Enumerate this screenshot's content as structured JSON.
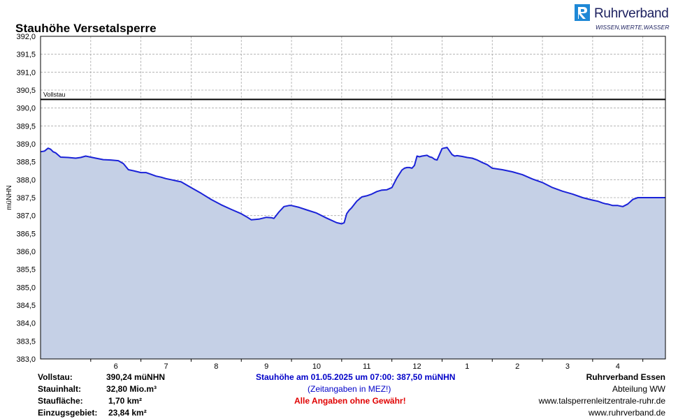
{
  "header": {
    "title": "Stauhöhe Versetalsperre",
    "logo_name": "Ruhrverband",
    "logo_tagline": "WISSEN,WERTE,WASSER"
  },
  "colors": {
    "fill": "#c5d0e6",
    "line": "#1a22d8",
    "vollstau_line": "#000000",
    "grid": "#a8a8a8",
    "accent_blue": "#0000c8",
    "warning_red": "#e00000",
    "logo_blue": "#1b1f5e"
  },
  "chart_data": {
    "type": "area",
    "title": "Stauhöhe Versetalsperre",
    "ylabel": "müNHN",
    "ylim": [
      383.0,
      392.0
    ],
    "y_ticks": [
      "383,0",
      "383,5",
      "384,0",
      "384,5",
      "385,0",
      "385,5",
      "386,0",
      "386,5",
      "387,0",
      "387,5",
      "388,0",
      "388,5",
      "389,0",
      "389,5",
      "390,0",
      "390,5",
      "391,0",
      "391,5",
      "392,0"
    ],
    "x_ticks": [
      "6",
      "7",
      "8",
      "9",
      "10",
      "11",
      "12",
      "1",
      "2",
      "3",
      "4"
    ],
    "x_unit": "months (May 2024 – May 2025)",
    "xlim": [
      5.0,
      17.45
    ],
    "grid": true,
    "reference_line": {
      "label": "Vollstau",
      "value": 390.24
    },
    "series": [
      {
        "x": [
          5.0,
          5.08,
          5.15,
          5.2,
          5.25,
          5.3,
          5.4,
          5.55,
          5.7,
          5.8,
          5.9,
          6.0,
          6.1,
          6.25,
          6.4,
          6.55,
          6.65,
          6.75,
          6.85,
          7.0,
          7.1,
          7.2,
          7.3,
          7.4,
          7.5,
          7.6,
          7.7,
          7.8,
          8.0,
          8.2,
          8.4,
          8.6,
          8.8,
          9.0,
          9.1,
          9.2,
          9.35,
          9.5,
          9.6,
          9.65,
          9.75,
          9.85,
          9.95,
          10.0,
          10.15,
          10.3,
          10.5,
          10.7,
          10.9,
          11.0,
          11.05,
          11.1,
          11.15,
          11.2,
          11.3,
          11.4,
          11.5,
          11.6,
          11.7,
          11.8,
          11.9,
          12.0,
          12.1,
          12.2,
          12.25,
          12.3,
          12.35,
          12.4,
          12.45,
          12.5,
          12.55,
          12.6,
          12.7,
          12.75,
          12.8,
          12.85,
          12.9,
          13.0,
          13.1,
          13.2,
          13.25,
          13.3,
          13.4,
          13.5,
          13.6,
          13.7,
          13.8,
          13.9,
          14.0,
          14.2,
          14.4,
          14.6,
          14.8,
          15.0,
          15.2,
          15.4,
          15.6,
          15.8,
          16.0,
          16.1,
          16.2,
          16.25,
          16.3,
          16.4,
          16.5,
          16.6,
          16.7,
          16.8,
          16.9,
          17.0,
          17.05,
          17.1,
          17.2,
          17.3,
          17.45
        ],
        "values": [
          388.78,
          388.8,
          388.88,
          388.85,
          388.78,
          388.75,
          388.63,
          388.62,
          388.6,
          388.62,
          388.66,
          388.63,
          388.6,
          388.56,
          388.55,
          388.53,
          388.45,
          388.28,
          388.25,
          388.2,
          388.2,
          388.15,
          388.1,
          388.07,
          388.03,
          388.0,
          387.97,
          387.94,
          387.78,
          387.62,
          387.45,
          387.3,
          387.17,
          387.05,
          386.97,
          386.88,
          386.9,
          386.95,
          386.94,
          386.92,
          387.1,
          387.25,
          387.28,
          387.28,
          387.23,
          387.16,
          387.07,
          386.93,
          386.8,
          386.77,
          386.8,
          387.05,
          387.15,
          387.22,
          387.4,
          387.52,
          387.55,
          387.6,
          387.67,
          387.71,
          387.72,
          387.78,
          388.05,
          388.27,
          388.32,
          388.34,
          388.34,
          388.32,
          388.4,
          388.66,
          388.64,
          388.66,
          388.68,
          388.64,
          388.62,
          388.57,
          388.55,
          388.87,
          388.9,
          388.7,
          388.66,
          388.67,
          388.65,
          388.62,
          388.6,
          388.55,
          388.48,
          388.42,
          388.32,
          388.28,
          388.22,
          388.14,
          388.02,
          387.92,
          387.78,
          387.68,
          387.6,
          387.5,
          387.43,
          387.4,
          387.35,
          387.33,
          387.32,
          387.28,
          387.28,
          387.25,
          387.32,
          387.45,
          387.5,
          387.5,
          387.5,
          387.5,
          387.5,
          387.5,
          387.5
        ]
      }
    ]
  },
  "footer": {
    "left": [
      {
        "label": "Vollstau:",
        "value": "390,24 müNHN"
      },
      {
        "label": "Stauinhalt:",
        "value": "32,80 Mio.m³"
      },
      {
        "label": "Staufläche:",
        "value": "1,70 km²"
      },
      {
        "label": "Einzugsgebiet:",
        "value": "23,84 km²"
      }
    ],
    "center": {
      "current": "Stauhöhe am 01.05.2025 um 07:00: 387,50  müNHN",
      "note": "(Zeitangaben in MEZ!)",
      "warning": "Alle Angaben ohne Gewähr!"
    },
    "right": {
      "org": "Ruhrverband Essen",
      "dept": "Abteilung WW",
      "url1": "www.talsperrenleitzentrale-ruhr.de",
      "url2": "www.ruhrverband.de"
    }
  }
}
